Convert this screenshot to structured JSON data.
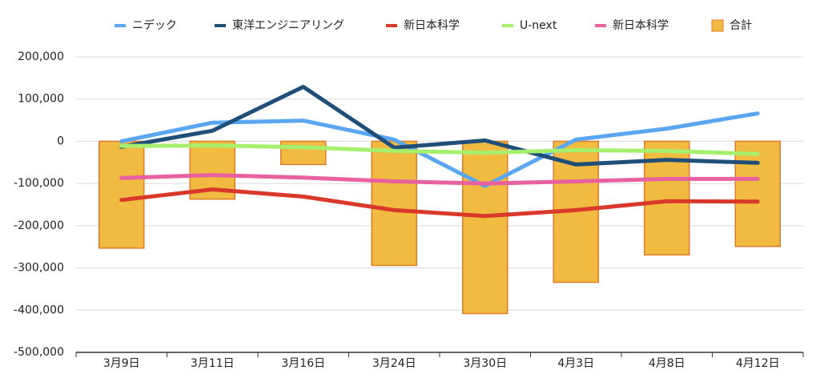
{
  "chart_data": {
    "type": "combo",
    "categories": [
      "3月9日",
      "3月11日",
      "3月16日",
      "3月24日",
      "3月30日",
      "4月3日",
      "4月8日",
      "4月12日"
    ],
    "ylim": [
      -500000,
      200000
    ],
    "yticks": [
      {
        "value": -500000,
        "label": "-500,000"
      },
      {
        "value": -400000,
        "label": "-400,000"
      },
      {
        "value": -300000,
        "label": "-300,000"
      },
      {
        "value": -200000,
        "label": "-200,000"
      },
      {
        "value": -100000,
        "label": "-100,000"
      },
      0,
      {
        "value": 100000,
        "label": "100,000"
      },
      {
        "value": 200000,
        "label": "200,000"
      }
    ],
    "grid": true,
    "legend": "top",
    "series": [
      {
        "name": "ニデック",
        "type": "line",
        "color": "#5aa6f0",
        "values": [
          0,
          44000,
          49000,
          4000,
          -106000,
          4000,
          30000,
          66000
        ]
      },
      {
        "name": "東洋エンジニアリング",
        "type": "line",
        "color": "#1f4e79",
        "values": [
          -13000,
          25000,
          129000,
          -15000,
          2000,
          -55000,
          -44000,
          -51000
        ]
      },
      {
        "name": "新日本科学",
        "type": "line",
        "color": "#d9382a",
        "values": [
          -139000,
          -114000,
          -131000,
          -163000,
          -177000,
          -163000,
          -142000,
          -143000
        ]
      },
      {
        "name": "U-next",
        "type": "line",
        "color": "#a6ef6c",
        "values": [
          -11000,
          -10000,
          -14000,
          -23000,
          -27000,
          -21000,
          -23000,
          -30000
        ]
      },
      {
        "name": "新日本科学",
        "type": "line",
        "color": "#e8609f",
        "values": [
          -87000,
          -80000,
          -86000,
          -95000,
          -100000,
          -95000,
          -89000,
          -89000
        ]
      },
      {
        "name": "合計",
        "type": "bar",
        "color": "#f0bb40",
        "values": [
          -253000,
          -137000,
          -55000,
          -294000,
          -408000,
          -334000,
          -269000,
          -249000
        ]
      }
    ]
  }
}
